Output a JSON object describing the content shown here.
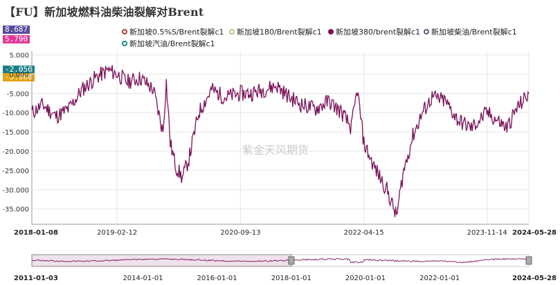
{
  "title": "【FU】新加坡燃料油柴油裂解对Brent",
  "value_badges": [
    {
      "text": "8.687",
      "color": "#5a4ba0"
    },
    {
      "text": "5.790",
      "color": "#e0389a"
    },
    {
      "text": "-2.050",
      "color": "#1b7f89"
    },
    {
      "text": "-3.960",
      "color": "#e1a413"
    }
  ],
  "watermark": "紫金天风期货",
  "legend": [
    {
      "label": "新加坡0.5%S/Brent裂解c1",
      "color": "#c0392b",
      "active": false
    },
    {
      "label": "新加坡180/Brent裂解c1",
      "color": "#c8b89a",
      "active": false
    },
    {
      "label": "新加坡380/brent裂解c1",
      "color": "#7a1057",
      "active": true
    },
    {
      "label": "新加坡柴油/Brent裂解c1",
      "color": "#5a5a8a",
      "active": false
    },
    {
      "label": "新加坡汽油/Brent裂解c1",
      "color": "#1b8a7a",
      "active": false
    }
  ],
  "colors": {
    "series": "#7a1057",
    "grid": "#e6e6e6",
    "nav_fill": "#efe2ec"
  },
  "chart_data": {
    "type": "line",
    "title": "【FU】新加坡燃料油柴油裂解对Brent",
    "ylim": [
      -39,
      6
    ],
    "y_ticks": [
      "5.000",
      "0.000",
      "-5.000",
      "-10.000",
      "-15.000",
      "-20.000",
      "-25.000",
      "-30.000",
      "-35.000"
    ],
    "x_ticks": [
      "2018-01-08",
      "2019-02-12",
      "2020-09-13",
      "2022-04-15",
      "2023-11-14",
      "2024-05-28"
    ],
    "series": [
      {
        "name": "新加坡380/brent裂解c1",
        "x": [
          "2018-01-08",
          "2018-03-01",
          "2018-05-01",
          "2018-07-01",
          "2018-09-01",
          "2018-11-01",
          "2019-01-01",
          "2019-02-12",
          "2019-04-01",
          "2019-06-01",
          "2019-08-01",
          "2019-09-15",
          "2019-10-01",
          "2019-10-20",
          "2019-11-15",
          "2019-12-15",
          "2020-01-15",
          "2020-03-01",
          "2020-05-01",
          "2020-07-01",
          "2020-09-13",
          "2020-11-01",
          "2021-01-01",
          "2021-03-01",
          "2021-05-01",
          "2021-07-01",
          "2021-09-01",
          "2021-11-01",
          "2022-01-01",
          "2022-02-15",
          "2022-03-15",
          "2022-04-15",
          "2022-06-01",
          "2022-08-01",
          "2022-09-15",
          "2022-10-15",
          "2022-12-01",
          "2023-01-15",
          "2023-03-01",
          "2023-05-01",
          "2023-07-01",
          "2023-09-01",
          "2023-11-14",
          "2024-01-01",
          "2024-02-15",
          "2024-04-01",
          "2024-05-28"
        ],
        "values": [
          -10,
          -8,
          -11,
          -9,
          -4,
          -1,
          1,
          0,
          -2,
          -1,
          -4,
          -15,
          -2,
          -18,
          -24,
          -27,
          -22,
          -10,
          -4,
          -6,
          -5,
          -5,
          -4,
          -3,
          -6,
          -8,
          -9,
          -7,
          -10,
          -14,
          -4,
          -18,
          -24,
          -30,
          -37,
          -26,
          -16,
          -10,
          -6,
          -7,
          -12,
          -14,
          -10,
          -12,
          -14,
          -9,
          -5
        ]
      }
    ],
    "navigator": {
      "x_ticks": [
        "2011-01-03",
        "2014-01-01",
        "2016-01-01",
        "2018-01-01",
        "2020-01-01",
        "2022-01-01",
        "2024-05-28"
      ]
    }
  }
}
